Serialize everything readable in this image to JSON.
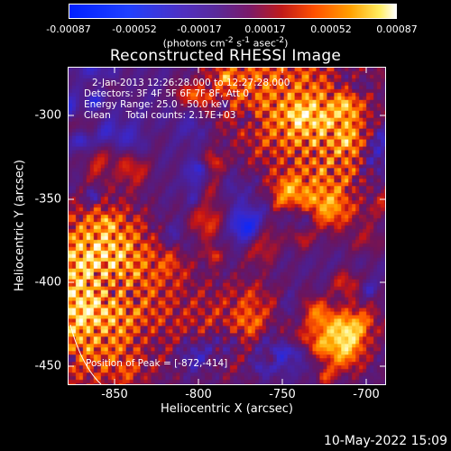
{
  "colorbar": {
    "tick_labels": [
      "-0.00087",
      "-0.00052",
      "-0.00017",
      "0.00017",
      "0.00052",
      "0.00087"
    ],
    "units_parts": [
      "(photons cm",
      "-2",
      " s",
      "-1",
      " asec",
      "-2",
      ")"
    ]
  },
  "title": "Reconstructed RHESSI Image",
  "overlay": {
    "line1": "2-Jan-2013 12:26:28.000 to 12:27:28.000",
    "line2": "Detectors: 3F 4F 5F 6F 7F 8F, Att 0",
    "line3": "Energy Range: 25.0 - 50.0 keV",
    "line4": "Clean     Total counts: 2.17E+03",
    "peak": "Position of Peak = [-872,-414]"
  },
  "axes": {
    "xlabel": "Heliocentric X (arcsec)",
    "ylabel": "Heliocentric Y (arcsec)",
    "xticks": [
      "-850",
      "-800",
      "-750",
      "-700"
    ],
    "yticks": [
      "-300",
      "-350",
      "-400",
      "-450"
    ],
    "xlim": [
      -878,
      -688
    ],
    "ylim": [
      -465,
      -275
    ],
    "xtick_values": [
      -850,
      -800,
      -750,
      -700
    ],
    "ytick_values": [
      -300,
      -350,
      -400,
      -450
    ]
  },
  "timestamp": "10-May-2022 15:09",
  "colors": {
    "background": "#000000",
    "low": "#0a2cff",
    "mid": "#5a2a9a",
    "high": "#ff7a00",
    "peak": "#ffffff"
  }
}
